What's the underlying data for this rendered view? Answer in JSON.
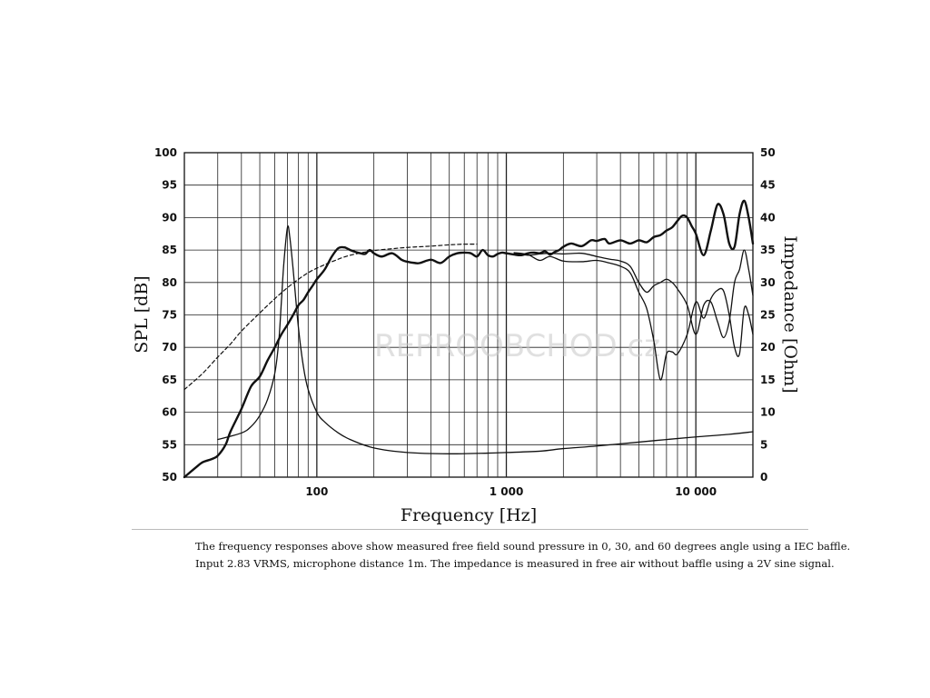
{
  "chart_data": {
    "type": "line",
    "xlabel": "Frequency [Hz]",
    "ylabel_left": "SPL [dB]",
    "ylabel_right": "Impedance [Ohm]",
    "x_scale": "log",
    "xlim": [
      20,
      20000
    ],
    "ylim_left": [
      50,
      100
    ],
    "ylim_right": [
      0,
      50
    ],
    "grid": true,
    "x_tick_labels": [
      {
        "value": 100,
        "label": "100"
      },
      {
        "value": 1000,
        "label": "1 000"
      },
      {
        "value": 10000,
        "label": "10 000"
      }
    ],
    "y_left_ticks": [
      "50",
      "55",
      "60",
      "65",
      "70",
      "75",
      "80",
      "85",
      "90",
      "95",
      "100"
    ],
    "y_right_ticks": [
      "0",
      "5",
      "10",
      "15",
      "20",
      "25",
      "30",
      "35",
      "40",
      "45",
      "50"
    ],
    "series": [
      {
        "axis": "left",
        "style": "thick",
        "x": [
          20,
          23,
          25,
          28,
          30,
          33,
          35,
          40,
          45,
          50,
          55,
          60,
          65,
          70,
          75,
          80,
          85,
          90,
          95,
          100,
          110,
          120,
          130,
          140,
          150,
          160,
          170,
          180,
          190,
          200,
          220,
          250,
          280,
          300,
          330,
          350,
          400,
          450,
          500,
          550,
          600,
          650,
          700,
          750,
          800,
          850,
          900,
          950,
          1000,
          1100,
          1200,
          1300,
          1400,
          1500,
          1600,
          1700,
          1800,
          1900,
          2000,
          2200,
          2500,
          2800,
          3000,
          3300,
          3500,
          4000,
          4500,
          5000,
          5500,
          6000,
          6500,
          7000,
          7500,
          8000,
          8500,
          9000,
          9500,
          10000,
          11000,
          12000,
          13000,
          14000,
          15000,
          16000,
          17000,
          18000,
          19000,
          20000
        ],
        "y": [
          50,
          51.5,
          52.3,
          52.8,
          53.3,
          55,
          57,
          60.5,
          64,
          65.5,
          68,
          70,
          72,
          73.5,
          75,
          76.5,
          77.3,
          78.5,
          79.5,
          80.5,
          82,
          84,
          85.3,
          85.4,
          85,
          84.7,
          84.5,
          84.4,
          85,
          84.5,
          84,
          84.5,
          83.5,
          83.2,
          83,
          83,
          83.5,
          83,
          84,
          84.5,
          84.6,
          84.5,
          84,
          85,
          84.2,
          84,
          84.4,
          84.6,
          84.5,
          84.3,
          84.2,
          84.5,
          84.6,
          84.5,
          84.8,
          84.3,
          84.7,
          85,
          85.5,
          86,
          85.6,
          86.5,
          86.4,
          86.7,
          86,
          86.5,
          86,
          86.5,
          86.2,
          87,
          87.3,
          88,
          88.5,
          89.5,
          90.3,
          90,
          88.7,
          87.5,
          84.2,
          88,
          92,
          90.5,
          86,
          85.5,
          90.5,
          92.6,
          90,
          86
        ]
      },
      {
        "axis": "left",
        "style": "thin",
        "x": [
          1100,
          1300,
          1500,
          1700,
          2000,
          2500,
          3000,
          3500,
          4000,
          4500,
          5000,
          5500,
          6000,
          6500,
          7000,
          7500,
          8000,
          9000,
          10000,
          11000,
          12000,
          13000,
          14000,
          15000,
          16000,
          17000,
          18000,
          19000,
          20000
        ],
        "y": [
          84.5,
          84.2,
          84.4,
          84.5,
          84.4,
          84.5,
          84,
          83.6,
          83.3,
          82.5,
          80,
          78.5,
          79.5,
          80,
          80.5,
          80,
          79,
          76.5,
          72,
          76.5,
          77,
          74,
          71.5,
          74,
          80,
          82,
          85,
          82,
          78
        ]
      },
      {
        "axis": "left",
        "style": "thin",
        "x": [
          1100,
          1300,
          1500,
          1700,
          2000,
          2500,
          3000,
          3500,
          4000,
          4500,
          5000,
          5500,
          6000,
          6500,
          7000,
          7500,
          8000,
          9000,
          10000,
          11000,
          12000,
          13000,
          14000,
          15000,
          16000,
          17000,
          18000,
          19000,
          20000
        ],
        "y": [
          84.6,
          84.3,
          83.4,
          84,
          83.3,
          83.2,
          83.4,
          83,
          82.5,
          81.5,
          78.5,
          76,
          71,
          65,
          69,
          69.3,
          69,
          72,
          77,
          74.5,
          77.5,
          78.8,
          78.7,
          75,
          70,
          69,
          76,
          75,
          72
        ]
      },
      {
        "axis": "left",
        "style": "dashed",
        "x": [
          20,
          25,
          30,
          35,
          40,
          50,
          60,
          70,
          80,
          90,
          100,
          120,
          150,
          200,
          250,
          300,
          400,
          500,
          600,
          700
        ],
        "y": [
          63.5,
          66,
          68.5,
          70.5,
          72.5,
          75.3,
          77.5,
          79.2,
          80.5,
          81.5,
          82.2,
          83.2,
          84.2,
          84.9,
          85.2,
          85.4,
          85.6,
          85.8,
          85.9,
          85.9
        ]
      },
      {
        "axis": "right",
        "style": "thin",
        "x": [
          30,
          40,
          45,
          50,
          55,
          60,
          63,
          65,
          67,
          70,
          72,
          75,
          80,
          85,
          90,
          100,
          110,
          130,
          150,
          200,
          300,
          500,
          800,
          1000,
          1500,
          2000,
          3000,
          5000,
          7000,
          10000,
          15000,
          20000
        ],
        "y": [
          5.8,
          6.8,
          7.8,
          9.5,
          12,
          16,
          21,
          27,
          33,
          38.5,
          37,
          32,
          23,
          17,
          13.5,
          10,
          8.5,
          6.8,
          5.8,
          4.5,
          3.8,
          3.6,
          3.7,
          3.8,
          4,
          4.4,
          4.8,
          5.4,
          5.8,
          6.2,
          6.6,
          7
        ]
      }
    ]
  },
  "watermark": "REPROOBCHOD.cz",
  "caption": {
    "line1": "The frequency responses above show measured free field sound pressure in 0, 30, and 60 degrees angle using a IEC baffle.",
    "line2": "Input 2.83 VRMS, microphone distance 1m. The impedance is measured in free air without baffle using a 2V sine signal."
  }
}
